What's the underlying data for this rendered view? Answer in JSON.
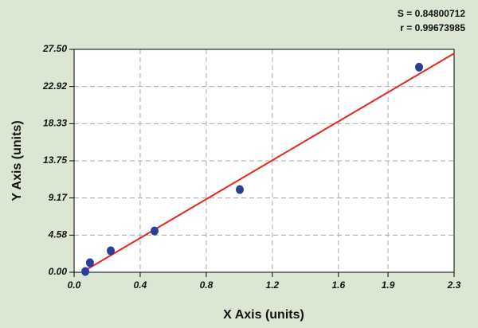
{
  "chart_data": {
    "type": "scatter",
    "stats": [
      "S = 0.84800712",
      "r = 0.99673985"
    ],
    "x_label": "X Axis (units)",
    "y_label": "Y Axis (units)",
    "xlim": [
      0,
      2.3
    ],
    "ylim": [
      0,
      27.5
    ],
    "xticks": [
      {
        "value": 0,
        "label": "0.0"
      },
      0.4,
      0.8,
      1.2,
      1.6,
      1.9,
      2.3
    ],
    "yticks": [
      {
        "value": 0,
        "label": "0.00"
      },
      4.58,
      9.17,
      13.75,
      18.33,
      22.92,
      {
        "value": 27.5,
        "label": "27.50"
      }
    ],
    "grid": true,
    "series": [
      {
        "color": "#2a3f9a",
        "mode": "markers",
        "x": [
          0.068,
          0.096,
          0.222,
          0.487,
          1.003,
          2.088
        ],
        "values": [
          0.1,
          1.18,
          2.65,
          5.1,
          10.2,
          25.3
        ]
      },
      {
        "color": "#e8251b",
        "mode": "line",
        "x": [
          0.048,
          2.3
        ],
        "values": [
          0,
          27.0
        ]
      }
    ]
  }
}
